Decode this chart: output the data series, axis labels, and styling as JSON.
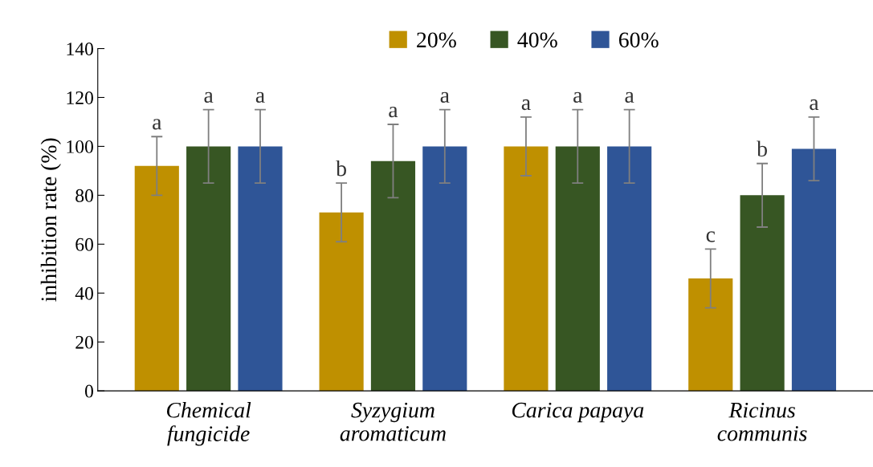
{
  "chart_data": {
    "type": "bar",
    "ylabel": "inhibition rate (%)",
    "categories": [
      "Chemical\nfungicide",
      "Syzygium\naromaticum",
      "Carica papaya",
      "Ricinus\ncommunis"
    ],
    "series": [
      {
        "name": "20%",
        "color": "#bf9000",
        "values": [
          92,
          73,
          100,
          46
        ],
        "errors": [
          12,
          12,
          12,
          12
        ],
        "value_labels": [
          "a",
          "b",
          "a",
          "c"
        ]
      },
      {
        "name": "40%",
        "color": "#375623",
        "values": [
          100,
          94,
          100,
          80
        ],
        "errors": [
          15,
          15,
          15,
          13
        ],
        "value_labels": [
          "a",
          "a",
          "a",
          "b"
        ]
      },
      {
        "name": "60%",
        "color": "#2f5597",
        "values": [
          100,
          100,
          100,
          99
        ],
        "errors": [
          15,
          15,
          15,
          13
        ],
        "value_labels": [
          "a",
          "a",
          "a",
          "a"
        ]
      }
    ],
    "ylim": [
      0,
      140
    ],
    "yticks": [
      0,
      20,
      40,
      60,
      80,
      100,
      120,
      140
    ],
    "grid": false,
    "legend": "top"
  }
}
